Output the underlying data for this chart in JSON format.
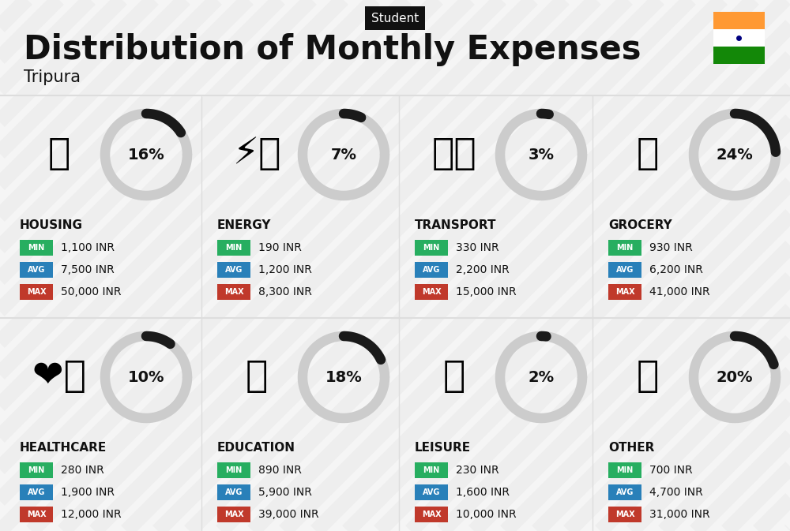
{
  "title": "Distribution of Monthly Expenses",
  "subtitle": "Student",
  "location": "Tripura",
  "bg_color": "#f5f5f5",
  "categories": [
    {
      "name": "HOUSING",
      "pct": 16,
      "min_val": "1,100 INR",
      "avg_val": "7,500 INR",
      "max_val": "50,000 INR",
      "icon": "🏢",
      "col": 0,
      "row": 0
    },
    {
      "name": "ENERGY",
      "pct": 7,
      "min_val": "190 INR",
      "avg_val": "1,200 INR",
      "max_val": "8,300 INR",
      "icon": "⚡🏠",
      "col": 1,
      "row": 0
    },
    {
      "name": "TRANSPORT",
      "pct": 3,
      "min_val": "330 INR",
      "avg_val": "2,200 INR",
      "max_val": "15,000 INR",
      "icon": "🚍🚗",
      "col": 2,
      "row": 0
    },
    {
      "name": "GROCERY",
      "pct": 24,
      "min_val": "930 INR",
      "avg_val": "6,200 INR",
      "max_val": "41,000 INR",
      "icon": "🛒",
      "col": 3,
      "row": 0
    },
    {
      "name": "HEALTHCARE",
      "pct": 10,
      "min_val": "280 INR",
      "avg_val": "1,900 INR",
      "max_val": "12,000 INR",
      "icon": "❤️‍🩹",
      "col": 0,
      "row": 1
    },
    {
      "name": "EDUCATION",
      "pct": 18,
      "min_val": "890 INR",
      "avg_val": "5,900 INR",
      "max_val": "39,000 INR",
      "icon": "🎓",
      "col": 1,
      "row": 1
    },
    {
      "name": "LEISURE",
      "pct": 2,
      "min_val": "230 INR",
      "avg_val": "1,600 INR",
      "max_val": "10,000 INR",
      "icon": "🛍️",
      "col": 2,
      "row": 1
    },
    {
      "name": "OTHER",
      "pct": 20,
      "min_val": "700 INR",
      "avg_val": "4,700 INR",
      "max_val": "31,000 INR",
      "icon": "👜",
      "col": 3,
      "row": 1
    }
  ],
  "color_min": "#27ae60",
  "color_avg": "#2980b9",
  "color_max": "#c0392b",
  "arc_color_filled": "#1a1a1a",
  "arc_color_empty": "#cccccc",
  "flag_orange": "#FF9933",
  "flag_green": "#138808",
  "flag_white": "#ffffff",
  "flag_navy": "#000080",
  "text_dark": "#111111",
  "text_white": "#ffffff",
  "separator_color": "#dddddd",
  "stripe_color": "#e8e8e8"
}
